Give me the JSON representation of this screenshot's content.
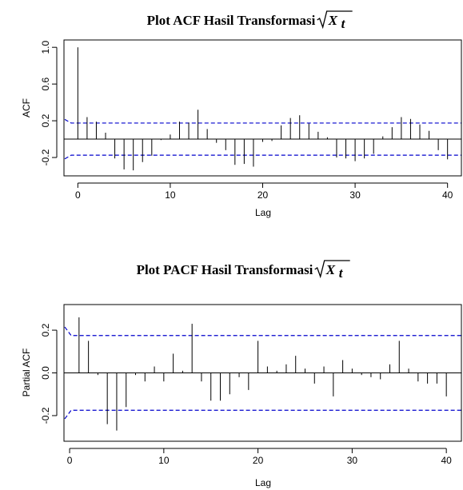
{
  "chart_data": [
    {
      "type": "bar",
      "title_prefix": "Plot ACF Hasil Transformasi",
      "title_math": "X",
      "title_math_sub": "t",
      "xlabel": "Lag",
      "ylabel": "ACF",
      "xlim": [
        -1.5,
        41.5
      ],
      "ylim": [
        -0.4,
        1.08
      ],
      "x_ticks": [
        "0",
        "10",
        "20",
        "30",
        "40"
      ],
      "y_ticks": [
        "-0.2",
        "0.2",
        "0.6",
        "1.0"
      ],
      "conf_limit": 0.175,
      "lags": [
        0,
        1,
        2,
        3,
        4,
        5,
        6,
        7,
        8,
        9,
        10,
        11,
        12,
        13,
        14,
        15,
        16,
        17,
        18,
        19,
        20,
        21,
        22,
        23,
        24,
        25,
        26,
        27,
        28,
        29,
        30,
        31,
        32,
        33,
        34,
        35,
        36,
        37,
        38,
        39,
        40
      ],
      "values": [
        1.0,
        0.24,
        0.19,
        0.07,
        -0.21,
        -0.33,
        -0.34,
        -0.25,
        -0.18,
        -0.01,
        0.05,
        0.19,
        0.18,
        0.32,
        0.11,
        -0.04,
        -0.12,
        -0.28,
        -0.27,
        -0.3,
        -0.03,
        -0.02,
        0.15,
        0.23,
        0.26,
        0.17,
        0.08,
        0.02,
        -0.2,
        -0.21,
        -0.24,
        -0.21,
        -0.16,
        0.03,
        0.13,
        0.24,
        0.22,
        0.16,
        0.09,
        -0.12,
        -0.22
      ],
      "ci_color": "#0000cc"
    },
    {
      "type": "bar",
      "title_prefix": "Plot PACF Hasil Transformasi",
      "title_math": "X",
      "title_math_sub": "t",
      "xlabel": "Lag",
      "ylabel": "Partial ACF",
      "xlim": [
        -0.6,
        41.6
      ],
      "ylim": [
        -0.32,
        0.32
      ],
      "x_ticks": [
        "0",
        "10",
        "20",
        "30",
        "40"
      ],
      "y_ticks": [
        "-0.2",
        "0.0",
        "0.2"
      ],
      "conf_limit": 0.175,
      "lags": [
        1,
        2,
        3,
        4,
        5,
        6,
        7,
        8,
        9,
        10,
        11,
        12,
        13,
        14,
        15,
        16,
        17,
        18,
        19,
        20,
        21,
        22,
        23,
        24,
        25,
        26,
        27,
        28,
        29,
        30,
        31,
        32,
        33,
        34,
        35,
        36,
        37,
        38,
        39,
        40
      ],
      "values": [
        0.26,
        0.15,
        -0.01,
        -0.24,
        -0.27,
        -0.16,
        -0.01,
        -0.04,
        0.03,
        -0.04,
        0.09,
        0.01,
        0.23,
        -0.04,
        -0.13,
        -0.13,
        -0.1,
        -0.02,
        -0.08,
        0.15,
        0.03,
        0.01,
        0.04,
        0.08,
        0.02,
        -0.05,
        0.03,
        -0.11,
        0.06,
        0.02,
        -0.01,
        -0.02,
        -0.03,
        0.04,
        0.15,
        0.02,
        -0.04,
        -0.05,
        -0.05,
        -0.11
      ],
      "ci_color": "#0000cc"
    }
  ]
}
